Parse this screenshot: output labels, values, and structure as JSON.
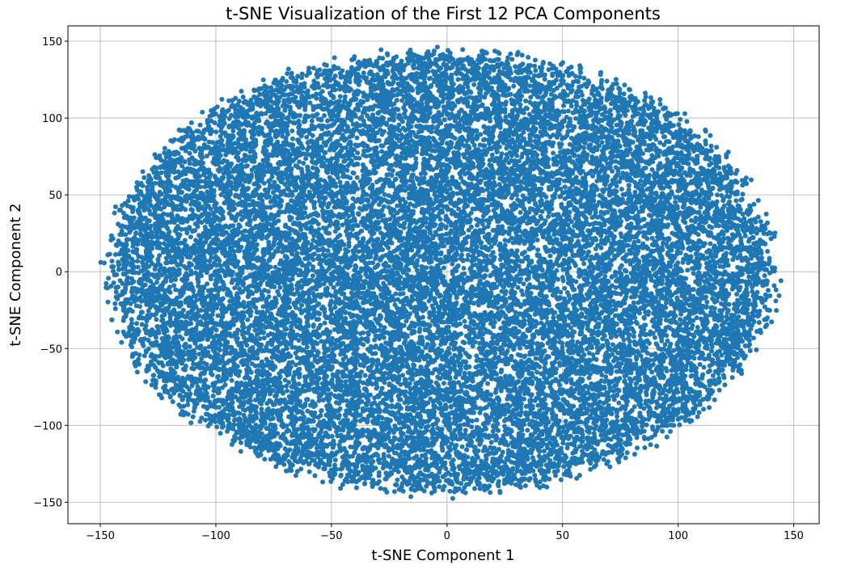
{
  "chart_data": {
    "type": "scatter",
    "title": "t-SNE Visualization of the First 12 PCA Components",
    "xlabel": "t-SNE Component 1",
    "ylabel": "t-SNE Component 2",
    "xlim": [
      -164,
      161
    ],
    "ylim": [
      -164,
      160
    ],
    "xticks": [
      -150,
      -100,
      -50,
      0,
      50,
      100,
      150
    ],
    "yticks": [
      -150,
      -100,
      -50,
      0,
      50,
      100,
      150
    ],
    "xtick_labels": [
      "−150",
      "−100",
      "−50",
      "0",
      "50",
      "100",
      "150"
    ],
    "ytick_labels": [
      "−150",
      "−100",
      "−50",
      "0",
      "50",
      "100",
      "150"
    ],
    "grid": true,
    "legend": "none",
    "marker_color": "#1f77b4",
    "point_cloud": {
      "shape": "ellipse",
      "center": [
        0,
        0
      ],
      "x_extent": [
        -150,
        145
      ],
      "y_extent": [
        -148,
        148
      ],
      "approx_point_count": 20000
    }
  }
}
